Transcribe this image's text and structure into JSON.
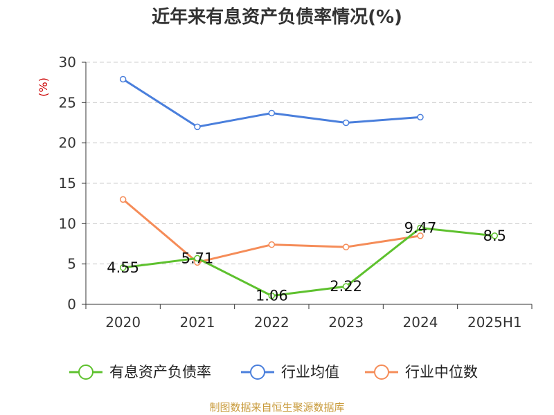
{
  "chart_data": {
    "type": "line",
    "title": "近年来有息资产负债率情况(%)",
    "ylabel": "(%)",
    "xlabel": "",
    "categories": [
      "2020",
      "2021",
      "2022",
      "2023",
      "2024",
      "2025H1"
    ],
    "ylim": [
      0,
      30
    ],
    "yticks": [
      0,
      5,
      10,
      15,
      20,
      25,
      30
    ],
    "grid": true,
    "legend_position": "bottom",
    "series": [
      {
        "name": "有息资产负债率",
        "color": "#5ec12e",
        "show_labels": true,
        "values": [
          4.55,
          5.71,
          1.06,
          2.22,
          9.47,
          8.5
        ],
        "labels": [
          "4.55",
          "5.71",
          "1.06",
          "2.22",
          "9.47",
          "8.5"
        ]
      },
      {
        "name": "行业均值",
        "color": "#4a7fdc",
        "show_labels": false,
        "values": [
          27.9,
          22.0,
          23.7,
          22.5,
          23.2,
          null
        ]
      },
      {
        "name": "行业中位数",
        "color": "#f58c58",
        "show_labels": false,
        "values": [
          13.0,
          5.2,
          7.4,
          7.1,
          8.5,
          null
        ]
      }
    ],
    "source": "制图数据来自恒生聚源数据库",
    "colors": {
      "title": "#333333",
      "ylabel": "#cc0000",
      "source": "#c89a3a",
      "axis": "#333333",
      "grid": "#cccccc"
    }
  }
}
